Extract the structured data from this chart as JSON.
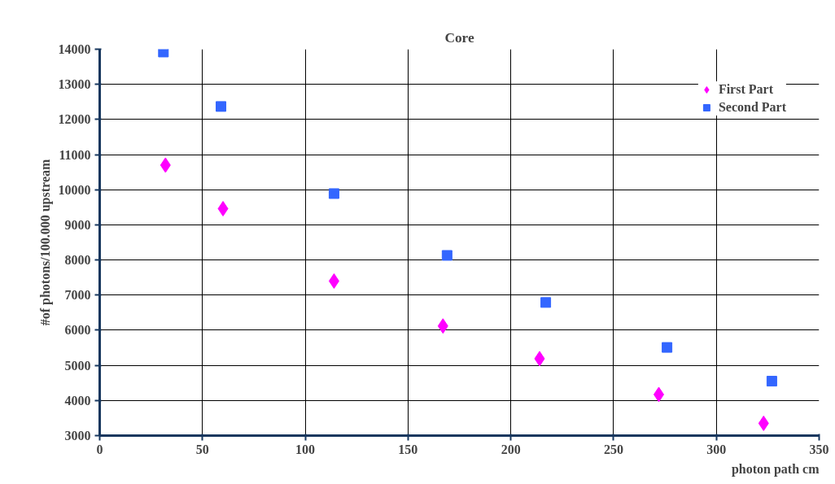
{
  "chart_data": {
    "type": "scatter",
    "title": "Core",
    "xlabel": "photon path cm",
    "ylabel": "#of photons/100.000 upstream",
    "series": [
      {
        "name": "First Part",
        "color": "#ff00ff",
        "marker": "diamond",
        "x": [
          32,
          60,
          114,
          167,
          214,
          272,
          323
        ],
        "values": [
          10700,
          9460,
          7400,
          6120,
          5190,
          4170,
          3350
        ]
      },
      {
        "name": "Second Part",
        "color": "#3366ff",
        "marker": "square",
        "x": [
          31,
          59,
          114,
          169,
          217,
          276,
          327
        ],
        "values": [
          13920,
          12370,
          9890,
          8130,
          6790,
          5510,
          4550
        ]
      }
    ],
    "xlim": [
      0,
      350
    ],
    "xticks": [
      0,
      50,
      100,
      150,
      200,
      250,
      300,
      350
    ],
    "ylim": [
      3000,
      14000
    ],
    "yticks": [
      3000,
      4000,
      5000,
      6000,
      7000,
      8000,
      9000,
      10000,
      11000,
      12000,
      13000,
      14000
    ],
    "grid": true,
    "legend": "top right"
  }
}
